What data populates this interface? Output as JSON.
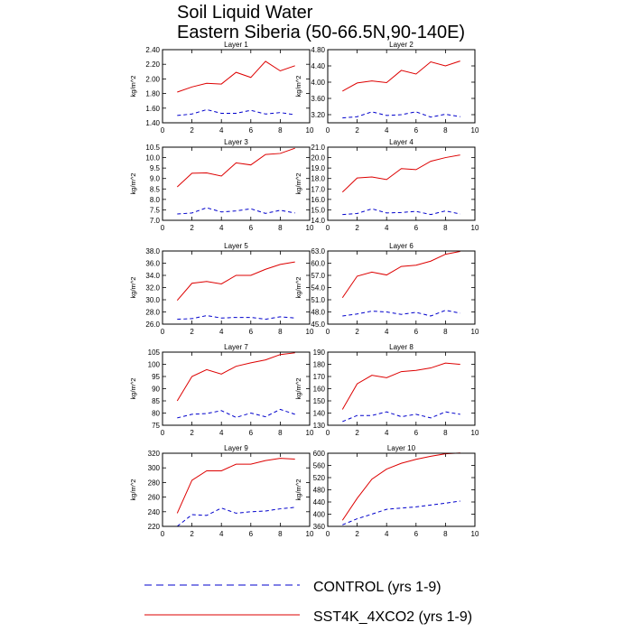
{
  "figure": {
    "title_line1": "Soil Liquid Water",
    "title_line2": "Eastern Siberia (50-66.5N,90-140E)"
  },
  "legend": {
    "control_label": "CONTROL (yrs 1-9)",
    "sst_label": "SST4K_4XCO2 (yrs 1-9)"
  },
  "colors": {
    "control": "#0000cc",
    "sst": "#dd0000"
  },
  "chart_data": [
    {
      "type": "line",
      "title": "Layer 1",
      "ylabel": "kg/m^2",
      "xlim": [
        0,
        10
      ],
      "ylim": [
        1.4,
        2.4
      ],
      "xticks": [
        "0",
        "2",
        "4",
        "6",
        "8",
        "10"
      ],
      "yticks": [
        "1.40",
        "1.60",
        "1.80",
        "2.00",
        "2.20",
        "2.40"
      ],
      "x": [
        1,
        2,
        3,
        4,
        5,
        6,
        7,
        8,
        9
      ],
      "series": [
        {
          "name": "CONTROL (yrs 1-9)",
          "style": "dashed",
          "color": "#0000cc",
          "values": [
            1.5,
            1.52,
            1.58,
            1.53,
            1.53,
            1.57,
            1.52,
            1.54,
            1.51
          ]
        },
        {
          "name": "SST4K_4XCO2 (yrs 1-9)",
          "style": "solid",
          "color": "#dd0000",
          "values": [
            1.82,
            1.89,
            1.94,
            1.93,
            2.09,
            2.02,
            2.24,
            2.11,
            2.18
          ]
        }
      ]
    },
    {
      "type": "line",
      "title": "Layer 2",
      "ylabel": "kg/m^2",
      "xlim": [
        0,
        10
      ],
      "ylim": [
        3.0,
        4.8
      ],
      "xticks": [
        "0",
        "2",
        "4",
        "6",
        "8",
        "10"
      ],
      "yticks": [
        "3.20",
        "3.60",
        "4.00",
        "4.40",
        "4.80"
      ],
      "x": [
        1,
        2,
        3,
        4,
        5,
        6,
        7,
        8,
        9
      ],
      "series": [
        {
          "name": "CONTROL (yrs 1-9)",
          "style": "dashed",
          "color": "#0000cc",
          "values": [
            3.12,
            3.15,
            3.27,
            3.18,
            3.2,
            3.27,
            3.14,
            3.21,
            3.15
          ]
        },
        {
          "name": "SST4K_4XCO2 (yrs 1-9)",
          "style": "solid",
          "color": "#dd0000",
          "values": [
            3.78,
            3.98,
            4.03,
            3.99,
            4.29,
            4.2,
            4.5,
            4.4,
            4.52
          ]
        }
      ]
    },
    {
      "type": "line",
      "title": "Layer 3",
      "ylabel": "kg/m^2",
      "xlim": [
        0,
        10
      ],
      "ylim": [
        7.0,
        10.5
      ],
      "xticks": [
        "0",
        "2",
        "4",
        "6",
        "8",
        "10"
      ],
      "yticks": [
        "7.0",
        "7.5",
        "8.0",
        "8.5",
        "9.0",
        "9.5",
        "10.0",
        "10.5"
      ],
      "x": [
        1,
        2,
        3,
        4,
        5,
        6,
        7,
        8,
        9
      ],
      "series": [
        {
          "name": "CONTROL (yrs 1-9)",
          "style": "dashed",
          "color": "#0000cc",
          "values": [
            7.3,
            7.35,
            7.6,
            7.4,
            7.45,
            7.55,
            7.33,
            7.48,
            7.35
          ]
        },
        {
          "name": "SST4K_4XCO2 (yrs 1-9)",
          "style": "solid",
          "color": "#dd0000",
          "values": [
            8.6,
            9.25,
            9.27,
            9.12,
            9.75,
            9.65,
            10.15,
            10.2,
            10.45
          ]
        }
      ]
    },
    {
      "type": "line",
      "title": "Layer 4",
      "ylabel": "kg/m^2",
      "xlim": [
        0,
        10
      ],
      "ylim": [
        14.0,
        21.0
      ],
      "xticks": [
        "0",
        "2",
        "4",
        "6",
        "8",
        "10"
      ],
      "yticks": [
        "14.0",
        "15.0",
        "16.0",
        "17.0",
        "18.0",
        "19.0",
        "20.0",
        "21.0"
      ],
      "x": [
        1,
        2,
        3,
        4,
        5,
        6,
        7,
        8,
        9
      ],
      "series": [
        {
          "name": "CONTROL (yrs 1-9)",
          "style": "dashed",
          "color": "#0000cc",
          "values": [
            14.55,
            14.65,
            15.1,
            14.7,
            14.75,
            14.85,
            14.55,
            14.9,
            14.6
          ]
        },
        {
          "name": "SST4K_4XCO2 (yrs 1-9)",
          "style": "solid",
          "color": "#dd0000",
          "values": [
            16.7,
            18.05,
            18.15,
            17.9,
            18.95,
            18.85,
            19.65,
            20.0,
            20.25
          ]
        }
      ]
    },
    {
      "type": "line",
      "title": "Layer 5",
      "ylabel": "kg/m^2",
      "xlim": [
        0,
        10
      ],
      "ylim": [
        26.0,
        38.0
      ],
      "xticks": [
        "0",
        "2",
        "4",
        "6",
        "8",
        "10"
      ],
      "yticks": [
        "26.0",
        "28.0",
        "30.0",
        "32.0",
        "34.0",
        "36.0",
        "38.0"
      ],
      "x": [
        1,
        2,
        3,
        4,
        5,
        6,
        7,
        8,
        9
      ],
      "series": [
        {
          "name": "CONTROL (yrs 1-9)",
          "style": "dashed",
          "color": "#0000cc",
          "values": [
            26.8,
            26.9,
            27.4,
            27.0,
            27.1,
            27.1,
            26.8,
            27.2,
            27.0
          ]
        },
        {
          "name": "SST4K_4XCO2 (yrs 1-9)",
          "style": "solid",
          "color": "#dd0000",
          "values": [
            29.9,
            32.7,
            33.0,
            32.6,
            34.0,
            34.0,
            35.0,
            35.8,
            36.2
          ]
        }
      ]
    },
    {
      "type": "line",
      "title": "Layer 6",
      "ylabel": "kg/m^2",
      "xlim": [
        0,
        10
      ],
      "ylim": [
        45.0,
        63.0
      ],
      "xticks": [
        "0",
        "2",
        "4",
        "6",
        "8",
        "10"
      ],
      "yticks": [
        "45.0",
        "48.0",
        "51.0",
        "54.0",
        "57.0",
        "60.0",
        "63.0"
      ],
      "x": [
        1,
        2,
        3,
        4,
        5,
        6,
        7,
        8,
        9
      ],
      "series": [
        {
          "name": "CONTROL (yrs 1-9)",
          "style": "dashed",
          "color": "#0000cc",
          "values": [
            47.0,
            47.5,
            48.2,
            48.0,
            47.4,
            47.9,
            47.0,
            48.4,
            47.7
          ]
        },
        {
          "name": "SST4K_4XCO2 (yrs 1-9)",
          "style": "solid",
          "color": "#dd0000",
          "values": [
            51.5,
            56.8,
            57.8,
            57.1,
            59.2,
            59.5,
            60.5,
            62.2,
            62.9
          ]
        }
      ]
    },
    {
      "type": "line",
      "title": "Layer 7",
      "ylabel": "kg/m^2",
      "xlim": [
        0,
        10
      ],
      "ylim": [
        75,
        105
      ],
      "xticks": [
        "0",
        "2",
        "4",
        "6",
        "8",
        "10"
      ],
      "yticks": [
        "75",
        "80",
        "85",
        "90",
        "95",
        "100",
        "105"
      ],
      "x": [
        1,
        2,
        3,
        4,
        5,
        6,
        7,
        8,
        9
      ],
      "series": [
        {
          "name": "CONTROL (yrs 1-9)",
          "style": "dashed",
          "color": "#0000cc",
          "values": [
            78.0,
            79.5,
            79.8,
            81.0,
            78.2,
            80.0,
            78.5,
            81.5,
            79.5
          ]
        },
        {
          "name": "SST4K_4XCO2 (yrs 1-9)",
          "style": "solid",
          "color": "#dd0000",
          "values": [
            85.0,
            95.0,
            97.8,
            96.0,
            99.2,
            100.6,
            101.8,
            104.0,
            104.7
          ]
        }
      ]
    },
    {
      "type": "line",
      "title": "Layer 8",
      "ylabel": "kg/m^2",
      "xlim": [
        0,
        10
      ],
      "ylim": [
        130,
        190
      ],
      "xticks": [
        "0",
        "2",
        "4",
        "6",
        "8",
        "10"
      ],
      "yticks": [
        "130",
        "140",
        "150",
        "160",
        "170",
        "180",
        "190"
      ],
      "x": [
        1,
        2,
        3,
        4,
        5,
        6,
        7,
        8,
        9
      ],
      "series": [
        {
          "name": "CONTROL (yrs 1-9)",
          "style": "dashed",
          "color": "#0000cc",
          "values": [
            133,
            138,
            138,
            141,
            137,
            139,
            136,
            141,
            139
          ]
        },
        {
          "name": "SST4K_4XCO2 (yrs 1-9)",
          "style": "solid",
          "color": "#dd0000",
          "values": [
            143,
            164,
            171,
            169,
            174,
            175,
            177,
            181,
            180
          ]
        }
      ]
    },
    {
      "type": "line",
      "title": "Layer 9",
      "ylabel": "kg/m^2",
      "xlim": [
        0,
        10
      ],
      "ylim": [
        220,
        320
      ],
      "xticks": [
        "0",
        "2",
        "4",
        "6",
        "8",
        "10"
      ],
      "yticks": [
        "220",
        "240",
        "260",
        "280",
        "300",
        "320"
      ],
      "x": [
        1,
        2,
        3,
        4,
        5,
        6,
        7,
        8,
        9
      ],
      "series": [
        {
          "name": "CONTROL (yrs 1-9)",
          "style": "dashed",
          "color": "#0000cc",
          "values": [
            220,
            236,
            235,
            245,
            238,
            240,
            241,
            244,
            246
          ]
        },
        {
          "name": "SST4K_4XCO2 (yrs 1-9)",
          "style": "solid",
          "color": "#dd0000",
          "values": [
            238,
            283,
            296,
            296,
            305,
            305,
            310,
            313,
            312
          ]
        }
      ]
    },
    {
      "type": "line",
      "title": "Layer 10",
      "ylabel": "kg/m^2",
      "xlim": [
        0,
        10
      ],
      "ylim": [
        360,
        600
      ],
      "xticks": [
        "0",
        "2",
        "4",
        "6",
        "8",
        "10"
      ],
      "yticks": [
        "360",
        "400",
        "440",
        "480",
        "520",
        "560",
        "600"
      ],
      "x": [
        1,
        2,
        3,
        4,
        5,
        6,
        7,
        8,
        9
      ],
      "series": [
        {
          "name": "CONTROL (yrs 1-9)",
          "style": "dashed",
          "color": "#0000cc",
          "values": [
            365,
            385,
            400,
            416,
            420,
            424,
            430,
            436,
            443
          ]
        },
        {
          "name": "SST4K_4XCO2 (yrs 1-9)",
          "style": "solid",
          "color": "#dd0000",
          "values": [
            380,
            452,
            515,
            548,
            567,
            580,
            590,
            598,
            601
          ]
        }
      ]
    }
  ]
}
